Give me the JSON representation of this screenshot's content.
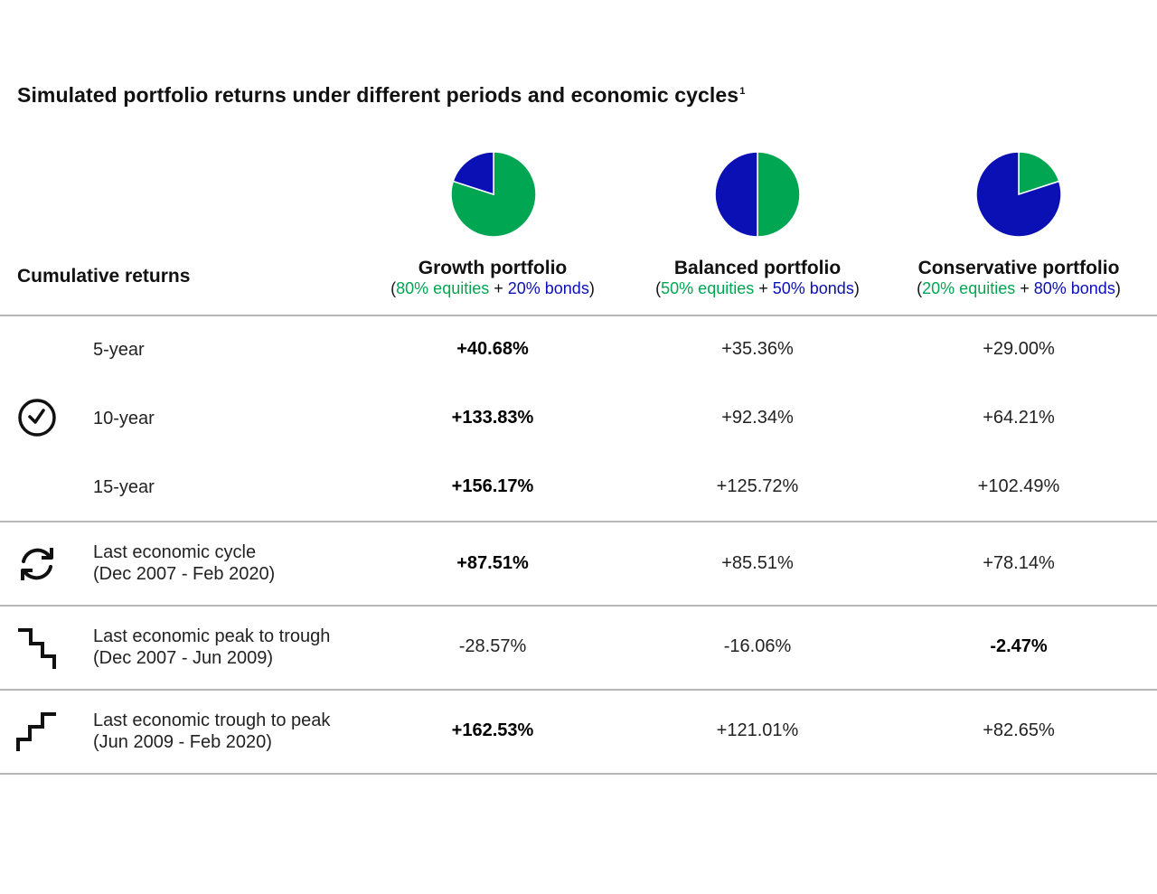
{
  "title": "Simulated portfolio returns under different periods and economic cycles",
  "title_superscript": "1",
  "row_header": "Cumulative returns",
  "colors": {
    "equities": "#00a651",
    "bonds": "#0a10b4",
    "rule": "#b7b7b7"
  },
  "chart_data": {
    "type": "table",
    "columns": [
      {
        "name": "Growth portfolio",
        "paren_open": "(",
        "equities_text": "80% equities",
        "plus": " + ",
        "bonds_text": "20% bonds",
        "paren_close": ")",
        "equities_pct": 80,
        "bonds_pct": 20
      },
      {
        "name": "Balanced portfolio",
        "paren_open": "(",
        "equities_text": "50% equities",
        "plus": " + ",
        "bonds_text": "50% bonds",
        "paren_close": ")",
        "equities_pct": 50,
        "bonds_pct": 50
      },
      {
        "name": "Conservative portfolio",
        "paren_open": "(",
        "equities_text": "20% equities",
        "plus": " + ",
        "bonds_text": "80% bonds",
        "paren_close": ")",
        "equities_pct": 20,
        "bonds_pct": 80
      }
    ],
    "rows": [
      {
        "label_line1": "5-year",
        "label_line2": "",
        "values": [
          "+40.68%",
          "+35.36%",
          "+29.00%"
        ],
        "bold_index": 0
      },
      {
        "label_line1": "10-year",
        "label_line2": "",
        "values": [
          "+133.83%",
          "+92.34%",
          "+64.21%"
        ],
        "bold_index": 0
      },
      {
        "label_line1": "15-year",
        "label_line2": "",
        "values": [
          "+156.17%",
          "+125.72%",
          "+102.49%"
        ],
        "bold_index": 0
      },
      {
        "label_line1": "Last economic cycle",
        "label_line2": "(Dec 2007 - Feb 2020)",
        "values": [
          "+87.51%",
          "+85.51%",
          "+78.14%"
        ],
        "bold_index": 0
      },
      {
        "label_line1": "Last economic peak to trough",
        "label_line2": "(Dec 2007 - Jun 2009)",
        "values": [
          "-28.57%",
          "-16.06%",
          "-2.47%"
        ],
        "bold_index": 2
      },
      {
        "label_line1": "Last economic trough to peak",
        "label_line2": "(Jun 2009 - Feb 2020)",
        "values": [
          "+162.53%",
          "+121.01%",
          "+82.65%"
        ],
        "bold_index": 0
      }
    ]
  },
  "icons": [
    "clock-icon",
    "cycle-icon",
    "step-down-icon",
    "step-up-icon"
  ]
}
